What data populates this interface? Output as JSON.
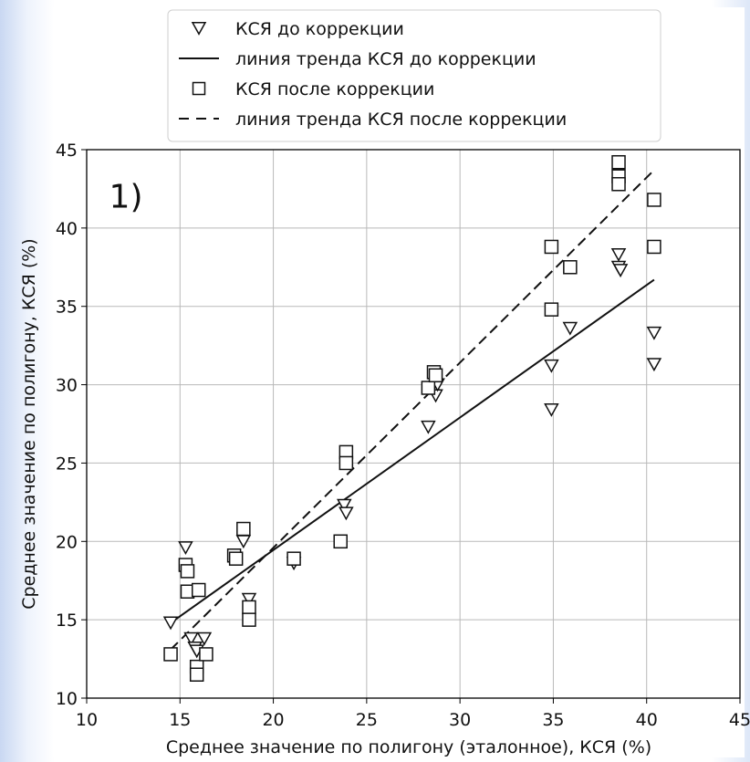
{
  "chart_data": {
    "type": "scatter",
    "panel_label": "1)",
    "xlabel": "Среднее значение по полигону (эталонное), КСЯ (%)",
    "ylabel": "Среднее значение по полигону, КСЯ (%)",
    "xlim": [
      10,
      45
    ],
    "ylim": [
      10,
      45
    ],
    "xticks": [
      10,
      15,
      20,
      25,
      30,
      35,
      40,
      45
    ],
    "yticks": [
      10,
      15,
      20,
      25,
      30,
      35,
      40,
      45
    ],
    "grid": true,
    "legend_position": "top-center",
    "legend": [
      {
        "label": "КСЯ до коррекции",
        "marker": "triangle-down-open"
      },
      {
        "label": "линия тренда КСЯ до коррекции",
        "marker": "solid-line"
      },
      {
        "label": "КСЯ после коррекции",
        "marker": "square-open"
      },
      {
        "label": "линия тренда КСЯ после коррекции",
        "marker": "dashed-line"
      }
    ],
    "series": [
      {
        "name": "КСЯ до коррекции",
        "marker": "triangle-down-open",
        "points": [
          [
            14.5,
            14.8
          ],
          [
            15.3,
            19.6
          ],
          [
            15.6,
            13.8
          ],
          [
            15.8,
            13.2
          ],
          [
            15.9,
            13.0
          ],
          [
            16.3,
            13.8
          ],
          [
            18.4,
            20.0
          ],
          [
            18.7,
            16.3
          ],
          [
            21.1,
            18.6
          ],
          [
            23.8,
            22.3
          ],
          [
            23.9,
            21.8
          ],
          [
            28.3,
            27.3
          ],
          [
            28.7,
            29.3
          ],
          [
            28.8,
            30.0
          ],
          [
            34.9,
            31.2
          ],
          [
            34.9,
            28.4
          ],
          [
            35.9,
            33.6
          ],
          [
            38.5,
            38.3
          ],
          [
            38.5,
            37.5
          ],
          [
            38.6,
            37.3
          ],
          [
            40.4,
            33.3
          ],
          [
            40.4,
            31.3
          ]
        ]
      },
      {
        "name": "КСЯ после коррекции",
        "marker": "square-open",
        "points": [
          [
            14.5,
            12.8
          ],
          [
            15.3,
            18.5
          ],
          [
            15.4,
            18.1
          ],
          [
            15.4,
            16.8
          ],
          [
            15.9,
            12.0
          ],
          [
            15.9,
            11.5
          ],
          [
            16.0,
            16.9
          ],
          [
            16.4,
            12.8
          ],
          [
            17.9,
            19.1
          ],
          [
            18.0,
            18.9
          ],
          [
            18.4,
            20.8
          ],
          [
            18.7,
            15.8
          ],
          [
            18.7,
            15.0
          ],
          [
            21.1,
            18.9
          ],
          [
            23.6,
            20.0
          ],
          [
            23.9,
            25.7
          ],
          [
            23.9,
            25.0
          ],
          [
            28.3,
            29.8
          ],
          [
            28.6,
            30.8
          ],
          [
            28.7,
            30.6
          ],
          [
            34.9,
            38.8
          ],
          [
            34.9,
            34.8
          ],
          [
            35.9,
            37.5
          ],
          [
            38.5,
            44.2
          ],
          [
            38.5,
            43.3
          ],
          [
            38.5,
            42.8
          ],
          [
            40.4,
            41.8
          ],
          [
            40.4,
            38.8
          ]
        ]
      },
      {
        "name": "линия тренда КСЯ до коррекции",
        "style": "solid",
        "line": [
          [
            14.5,
            14.8
          ],
          [
            40.4,
            36.7
          ]
        ]
      },
      {
        "name": "линия тренда КСЯ после коррекции",
        "style": "dashed",
        "line": [
          [
            14.5,
            13.1
          ],
          [
            40.4,
            43.7
          ]
        ]
      }
    ]
  }
}
